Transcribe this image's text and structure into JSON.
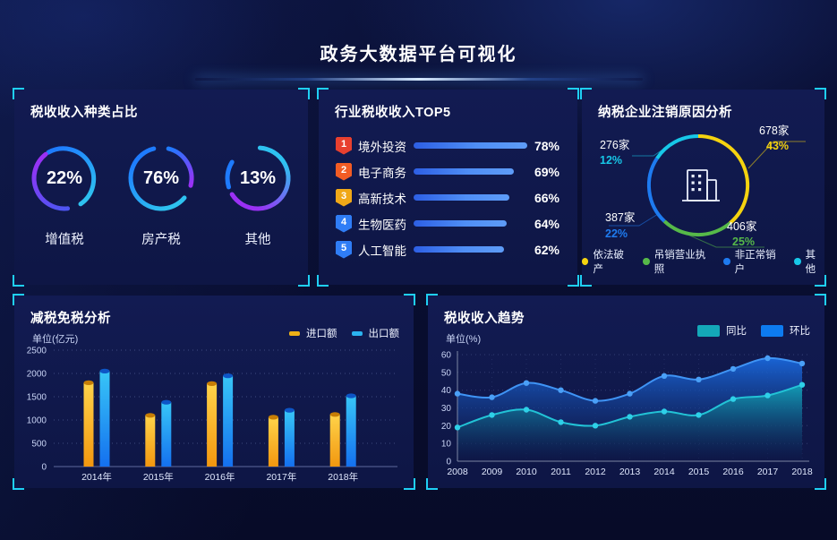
{
  "page_title": "政务大数据平台可视化",
  "theme": {
    "bg": "#090e31",
    "panel_bg": "#101a4e",
    "bracket": "#1fd0f5",
    "ring_blue": "#1e7bff",
    "ring_cyan": "#2ec2f0",
    "ring_purple": "#9b30f5"
  },
  "panels": {
    "tax_type": {
      "title": "税收收入种类占比",
      "rings": [
        {
          "percent": "22%",
          "label": "增值税"
        },
        {
          "percent": "76%",
          "label": "房产税"
        },
        {
          "percent": "13%",
          "label": "其他"
        }
      ]
    },
    "industry_top5": {
      "title": "行业税收收入TOP5",
      "items": [
        {
          "rank": "1",
          "label": "境外投资",
          "percent": "78%",
          "badge_color": "#e8402f"
        },
        {
          "rank": "2",
          "label": "电子商务",
          "percent": "69%",
          "badge_color": "#f25c24"
        },
        {
          "rank": "3",
          "label": "高新技术",
          "percent": "66%",
          "badge_color": "#f0a818"
        },
        {
          "rank": "4",
          "label": "生物医药",
          "percent": "64%",
          "badge_color": "#2f7df6"
        },
        {
          "rank": "5",
          "label": "人工智能",
          "percent": "62%",
          "badge_color": "#2f7df6"
        }
      ]
    },
    "cancel_reason": {
      "title": "纳税企业注销原因分析",
      "center_icon": "building-icon",
      "callouts": [
        {
          "count": "678家",
          "percent": "43%",
          "color": "#f5d30f"
        },
        {
          "count": "276家",
          "percent": "12%",
          "color": "#17c8e8"
        },
        {
          "count": "387家",
          "percent": "22%",
          "color": "#1e7bf0"
        },
        {
          "count": "406家",
          "percent": "25%",
          "color": "#56b949"
        }
      ],
      "legend": [
        {
          "label": "依法破产",
          "color": "#f5d30f"
        },
        {
          "label": "吊销营业执照",
          "color": "#56b949"
        },
        {
          "label": "非正常销户",
          "color": "#1e7bf0"
        },
        {
          "label": "其他",
          "color": "#17c8e8"
        }
      ]
    },
    "tax_relief": {
      "title": "减税免税分析",
      "unit": "单位(亿元)",
      "legend": [
        {
          "label": "进口额",
          "color": "#eeb117"
        },
        {
          "label": "出口额",
          "color": "#2bb3f0"
        }
      ]
    },
    "tax_trend": {
      "title": "税收收入趋势",
      "unit": "单位(%)",
      "legend": [
        {
          "label": "同比",
          "color": "#14a8b8"
        },
        {
          "label": "环比",
          "color": "#0d7bf0"
        }
      ]
    }
  },
  "chart_data": [
    {
      "type": "pie",
      "variant": "progress-rings",
      "title": "税收收入种类占比",
      "unit": "%",
      "series": [
        {
          "label": "增值税",
          "value": 22
        },
        {
          "label": "房产税",
          "value": 76
        },
        {
          "label": "其他",
          "value": 13
        }
      ]
    },
    {
      "type": "bar",
      "variant": "horizontal-rank",
      "title": "行业税收收入TOP5",
      "categories": [
        "境外投资",
        "电子商务",
        "高新技术",
        "生物医药",
        "人工智能"
      ],
      "values": [
        78,
        69,
        66,
        64,
        62
      ],
      "unit": "%",
      "xlim": [
        0,
        100
      ]
    },
    {
      "type": "pie",
      "variant": "donut",
      "title": "纳税企业注销原因分析",
      "legend_position": "bottom",
      "slices": [
        {
          "label": "依法破产",
          "count": 678,
          "percent": 43,
          "color": "#f5d30f"
        },
        {
          "label": "吊销营业执照",
          "count": 406,
          "percent": 25,
          "color": "#56b949"
        },
        {
          "label": "非正常销户",
          "count": 387,
          "percent": 22,
          "color": "#1e7bf0"
        },
        {
          "label": "其他",
          "count": 276,
          "percent": 12,
          "color": "#17c8e8"
        }
      ]
    },
    {
      "type": "bar",
      "title": "减税免税分析",
      "ylabel": "单位(亿元)",
      "categories": [
        "2014年",
        "2015年",
        "2016年",
        "2017年",
        "2018年"
      ],
      "series": [
        {
          "name": "进口额",
          "color": "#eeb117",
          "values": [
            1800,
            1100,
            1780,
            1060,
            1120
          ]
        },
        {
          "name": "出口额",
          "color": "#2bb3f0",
          "values": [
            2050,
            1380,
            1950,
            1210,
            1520
          ]
        }
      ],
      "ylim": [
        0,
        2500
      ],
      "yticks": [
        0,
        500,
        1000,
        1500,
        2000,
        2500
      ],
      "grid": "dotted",
      "legend_position": "top-right"
    },
    {
      "type": "area",
      "title": "税收收入趋势",
      "ylabel": "单位(%)",
      "x": [
        "2008",
        "2009",
        "2010",
        "2011",
        "2012",
        "2013",
        "2014",
        "2015",
        "2016",
        "2017",
        "2018"
      ],
      "series": [
        {
          "name": "同比",
          "color": "#14a8b8",
          "values": [
            19,
            26,
            29,
            22,
            20,
            25,
            28,
            26,
            35,
            37,
            43
          ]
        },
        {
          "name": "环比",
          "color": "#0d7bf0",
          "values": [
            38,
            36,
            44,
            40,
            34,
            38,
            48,
            46,
            52,
            58,
            55
          ]
        }
      ],
      "ylim": [
        0,
        60
      ],
      "yticks": [
        0,
        10,
        20,
        30,
        40,
        50,
        60
      ],
      "grid": "dotted",
      "legend_position": "top-right"
    }
  ]
}
